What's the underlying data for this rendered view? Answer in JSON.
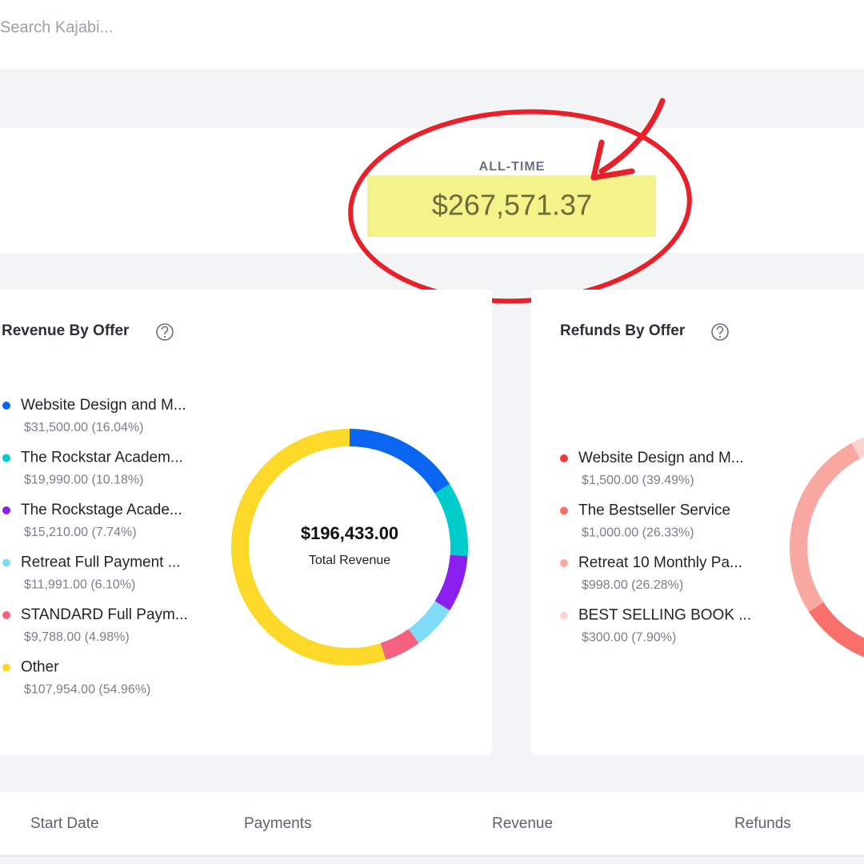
{
  "search_placeholder": "Search Kajabi...",
  "all_time_label": "ALL-TIME",
  "all_time_value": "$267,571.37",
  "chart_data": [
    {
      "type": "pie",
      "title": "Revenue By Offer",
      "center_value": "$196,433.00",
      "center_label": "Total Revenue",
      "categories": [
        "Website Design and M...",
        "The Rockstar Academ...",
        "The Rockstage Acade...",
        "Retreat Full Payment ...",
        "STANDARD Full Paym...",
        "Other"
      ],
      "values": [
        31500,
        19990,
        15210,
        11991,
        9788,
        107954
      ],
      "value_labels": [
        "$31,500.00 (16.04%)",
        "$19,990.00 (10.18%)",
        "$15,210.00 (7.74%)",
        "$11,991.00 (6.10%)",
        "$9,788.00 (4.98%)",
        "$107,954.00 (54.96%)"
      ],
      "colors": [
        "#0a66f0",
        "#00cccc",
        "#8a1ff0",
        "#7fdcf7",
        "#f4607f",
        "#fcd829"
      ]
    },
    {
      "type": "pie",
      "title": "Refunds By Offer",
      "categories": [
        "Website Design and M...",
        "The Bestseller Service",
        "Retreat 10 Monthly Pa...",
        "BEST SELLING BOOK ..."
      ],
      "values": [
        1500,
        1000,
        998,
        300
      ],
      "value_labels": [
        "$1,500.00 (39.49%)",
        "$1,000.00 (26.33%)",
        "$998.00 (26.28%)",
        "$300.00 (7.90%)"
      ],
      "colors": [
        "#f03a35",
        "#f7706a",
        "#f9a7a1",
        "#fbd3d2"
      ]
    }
  ],
  "table_headers": [
    "Start Date",
    "Payments",
    "Revenue",
    "Refunds"
  ]
}
